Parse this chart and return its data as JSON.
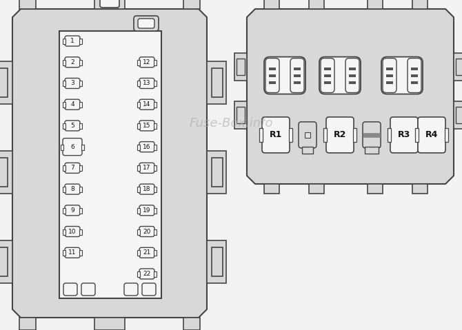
{
  "bg_color": "#d8d8d8",
  "outline_color": "#444444",
  "white_fill": "#f5f5f5",
  "light_fill": "#e0e0e0",
  "fuse_numbers_left": [
    1,
    2,
    3,
    4,
    5,
    6,
    7,
    8,
    9,
    10,
    11
  ],
  "fuse_numbers_right": [
    12,
    13,
    14,
    15,
    16,
    17,
    18,
    19,
    20,
    21,
    22
  ],
  "relay_labels": [
    "R1",
    "R2",
    "R3",
    "R4"
  ],
  "watermark": "Fuse-Box.info",
  "fig_bg": "#f2f2f2"
}
